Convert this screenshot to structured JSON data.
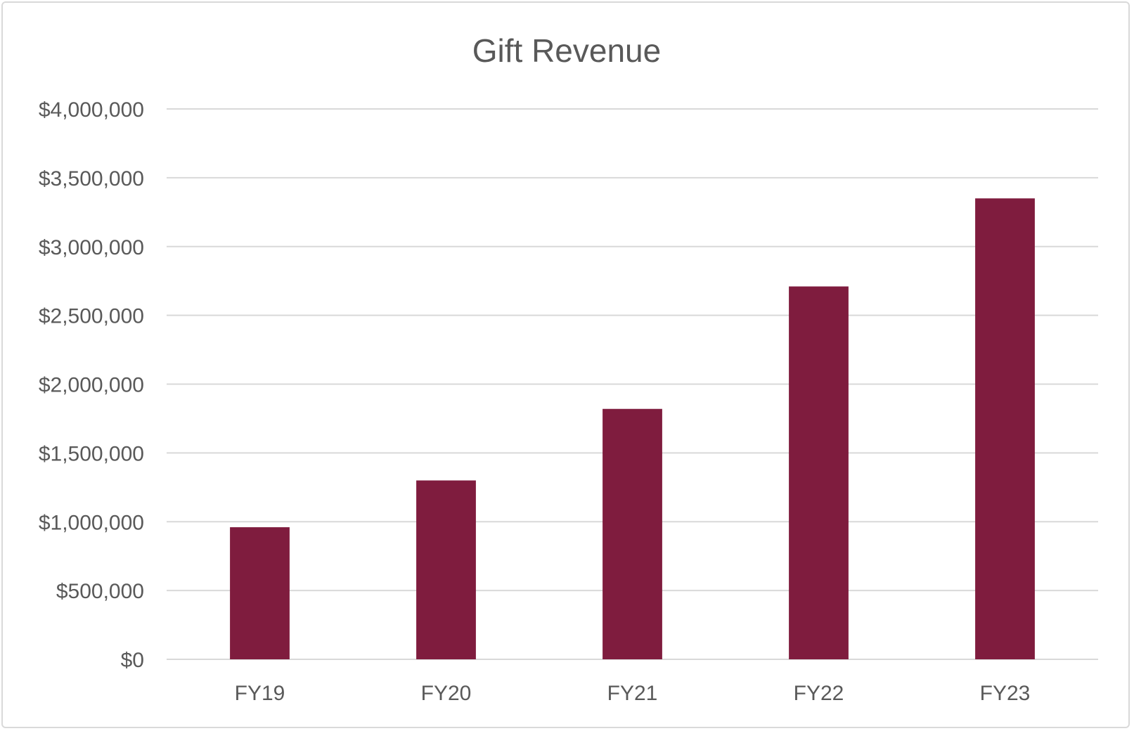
{
  "chart_data": {
    "type": "bar",
    "title": "Gift Revenue",
    "xlabel": "",
    "ylabel": "",
    "categories": [
      "FY19",
      "FY20",
      "FY21",
      "FY22",
      "FY23"
    ],
    "values": [
      960000,
      1300000,
      1820000,
      2710000,
      3350000
    ],
    "ylim": [
      0,
      4000000
    ],
    "yticks": [
      0,
      500000,
      1000000,
      1500000,
      2000000,
      2500000,
      3000000,
      3500000,
      4000000
    ],
    "ytick_labels": [
      "$0",
      "$500,000",
      "$1,000,000",
      "$1,500,000",
      "$2,000,000",
      "$2,500,000",
      "$3,000,000",
      "$3,500,000",
      "$4,000,000"
    ],
    "grid": true,
    "legend": "none",
    "bar_color": "#7f1c3e",
    "grid_color": "#d9d9d9",
    "text_color": "#595959"
  }
}
